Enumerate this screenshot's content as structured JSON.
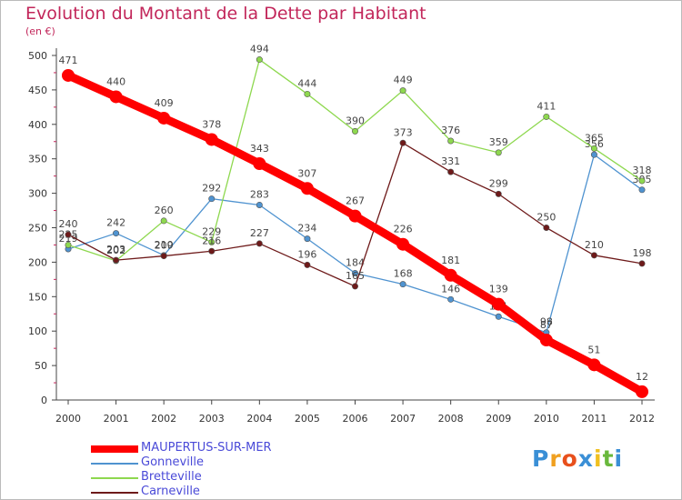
{
  "title": "Evolution du Montant de la Dette par Habitant",
  "subtitle": "(en €)",
  "logo": {
    "text": "Proxiti",
    "colors": [
      "#3a8fd6",
      "#f0a020",
      "#e8501c",
      "#3a8fd6",
      "#f0c020",
      "#69b83c",
      "#3a8fd6"
    ]
  },
  "chart_data": {
    "type": "line",
    "x": [
      2000,
      2001,
      2002,
      2003,
      2004,
      2005,
      2006,
      2007,
      2008,
      2009,
      2010,
      2011,
      2012
    ],
    "ylim": [
      0,
      500
    ],
    "yticks": [
      0,
      50,
      100,
      150,
      200,
      250,
      300,
      350,
      400,
      450,
      500
    ],
    "grid": false,
    "legend": "bottom-left",
    "series": [
      {
        "name": "MAUPERTUS-SUR-MER",
        "color": "#ff0000",
        "values": [
          471,
          440,
          409,
          378,
          343,
          307,
          267,
          226,
          181,
          139,
          87,
          51,
          12
        ]
      },
      {
        "name": "Gonneville",
        "color": "#4f93d0",
        "values": [
          219,
          242,
          210,
          292,
          283,
          234,
          184,
          168,
          146,
          121,
          98,
          356,
          305
        ]
      },
      {
        "name": "Bretteville",
        "color": "#8ed84f",
        "values": [
          225,
          202,
          260,
          229,
          494,
          444,
          390,
          449,
          376,
          359,
          411,
          365,
          318
        ]
      },
      {
        "name": "Carneville",
        "color": "#6e1a1a",
        "values": [
          240,
          203,
          209,
          216,
          227,
          196,
          165,
          373,
          331,
          299,
          250,
          210,
          198
        ]
      }
    ]
  }
}
